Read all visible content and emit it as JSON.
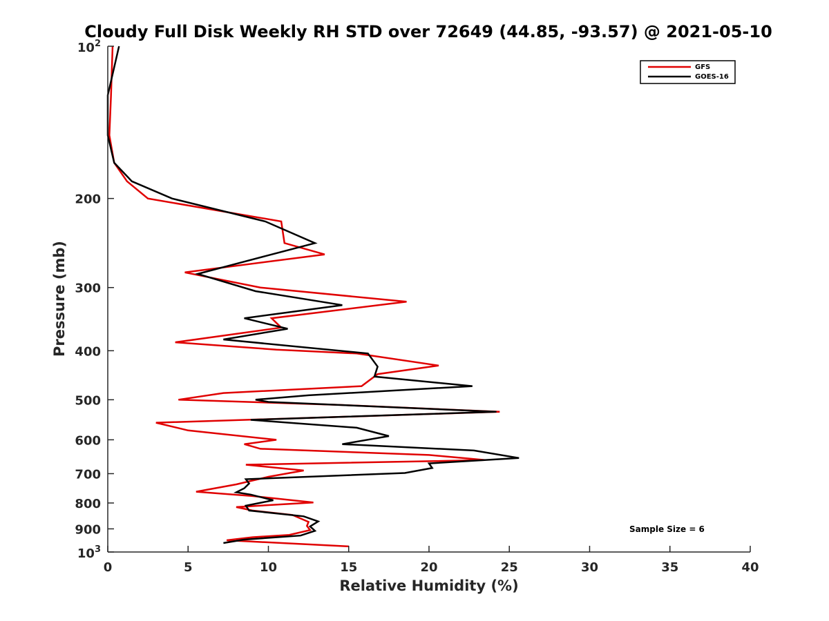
{
  "chart_data": {
    "type": "line",
    "title": "Cloudy Full Disk Weekly RH STD over 72649 (44.85, -93.57) @ 2021-05-10",
    "xlabel": "Relative Humidity (%)",
    "ylabel": "Pressure (mb)",
    "xlim": [
      0,
      40
    ],
    "ylim": [
      100,
      1000
    ],
    "y_scale": "log",
    "y_reversed": true,
    "grid": false,
    "legend_position": "top-right",
    "x_ticks": [
      "0",
      "5",
      "10",
      "15",
      "20",
      "25",
      "30",
      "35",
      "40"
    ],
    "y_ticks": [
      {
        "value": 100,
        "base": "10",
        "exp": "2"
      },
      {
        "value": 200,
        "base": "200",
        "exp": ""
      },
      {
        "value": 300,
        "base": "300",
        "exp": ""
      },
      {
        "value": 400,
        "base": "400",
        "exp": ""
      },
      {
        "value": 500,
        "base": "500",
        "exp": ""
      },
      {
        "value": 600,
        "base": "600",
        "exp": ""
      },
      {
        "value": 700,
        "base": "700",
        "exp": ""
      },
      {
        "value": 800,
        "base": "800",
        "exp": ""
      },
      {
        "value": 900,
        "base": "900",
        "exp": ""
      },
      {
        "value": 1000,
        "base": "10",
        "exp": "3"
      }
    ],
    "annotation": "Sample Size = 6",
    "series": [
      {
        "name": "GFS",
        "color": "#e00000",
        "points": [
          [
            0.3,
            100
          ],
          [
            0.2,
            125
          ],
          [
            0.1,
            150
          ],
          [
            0.4,
            170
          ],
          [
            1.2,
            185
          ],
          [
            2.5,
            200
          ],
          [
            10.8,
            222
          ],
          [
            11.0,
            245
          ],
          [
            13.5,
            258
          ],
          [
            4.8,
            280
          ],
          [
            9.5,
            300
          ],
          [
            18.6,
            320
          ],
          [
            10.2,
            345
          ],
          [
            10.8,
            360
          ],
          [
            4.2,
            385
          ],
          [
            10.5,
            398
          ],
          [
            15.5,
            405
          ],
          [
            20.6,
            428
          ],
          [
            16.8,
            445
          ],
          [
            15.8,
            470
          ],
          [
            7.2,
            485
          ],
          [
            4.4,
            500
          ],
          [
            14.5,
            512
          ],
          [
            24.4,
            528
          ],
          [
            15.0,
            540
          ],
          [
            3.0,
            555
          ],
          [
            5.0,
            575
          ],
          [
            10.5,
            600
          ],
          [
            8.5,
            612
          ],
          [
            9.5,
            625
          ],
          [
            20.0,
            643
          ],
          [
            23.5,
            658
          ],
          [
            8.6,
            672
          ],
          [
            12.2,
            690
          ],
          [
            10.0,
            710
          ],
          [
            8.0,
            735
          ],
          [
            5.5,
            760
          ],
          [
            9.0,
            775
          ],
          [
            12.8,
            798
          ],
          [
            8.0,
            815
          ],
          [
            9.0,
            828
          ],
          [
            11.5,
            845
          ],
          [
            12.5,
            872
          ],
          [
            12.4,
            888
          ],
          [
            12.6,
            905
          ],
          [
            11.3,
            925
          ],
          [
            9.0,
            935
          ],
          [
            7.4,
            948
          ],
          [
            15.0,
            975
          ]
        ]
      },
      {
        "name": "GOES-16",
        "color": "#000000",
        "points": [
          [
            0.7,
            100
          ],
          [
            0.0,
            125
          ],
          [
            0.0,
            150
          ],
          [
            0.4,
            170
          ],
          [
            1.5,
            185
          ],
          [
            4.0,
            200
          ],
          [
            9.8,
            222
          ],
          [
            12.9,
            245
          ],
          [
            9.8,
            260
          ],
          [
            5.6,
            282
          ],
          [
            9.2,
            305
          ],
          [
            14.6,
            325
          ],
          [
            8.5,
            345
          ],
          [
            11.2,
            362
          ],
          [
            7.2,
            380
          ],
          [
            16.2,
            405
          ],
          [
            16.8,
            430
          ],
          [
            16.6,
            450
          ],
          [
            22.7,
            470
          ],
          [
            12.5,
            490
          ],
          [
            9.2,
            500
          ],
          [
            10.0,
            505
          ],
          [
            24.2,
            528
          ],
          [
            8.9,
            548
          ],
          [
            15.5,
            568
          ],
          [
            17.5,
            590
          ],
          [
            14.6,
            612
          ],
          [
            22.8,
            630
          ],
          [
            25.6,
            652
          ],
          [
            20.0,
            668
          ],
          [
            20.2,
            682
          ],
          [
            18.5,
            698
          ],
          [
            8.6,
            718
          ],
          [
            8.8,
            732
          ],
          [
            8.5,
            748
          ],
          [
            8.0,
            762
          ],
          [
            8.9,
            770
          ],
          [
            10.3,
            790
          ],
          [
            8.6,
            810
          ],
          [
            8.8,
            828
          ],
          [
            12.2,
            850
          ],
          [
            13.1,
            870
          ],
          [
            12.6,
            890
          ],
          [
            12.9,
            908
          ],
          [
            12.0,
            928
          ],
          [
            8.5,
            945
          ],
          [
            7.2,
            960
          ]
        ]
      }
    ]
  }
}
